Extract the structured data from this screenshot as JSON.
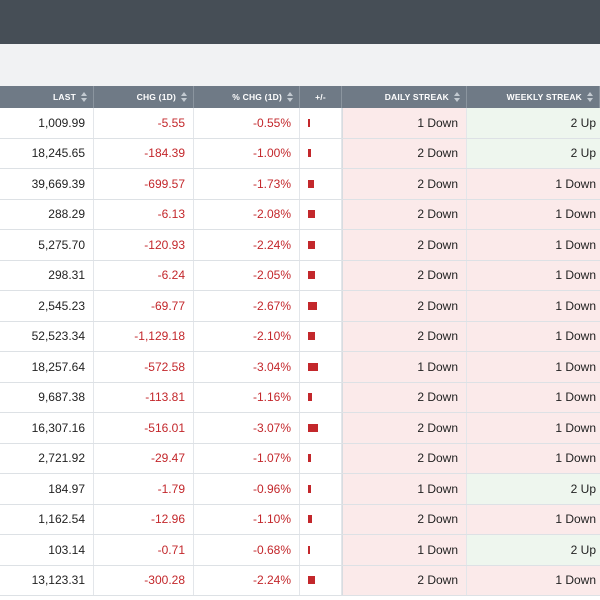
{
  "headers": {
    "last": "LAST",
    "chg": "CHG (1D)",
    "pct_chg": "% CHG (1D)",
    "plus_minus": "+/-",
    "daily_streak": "DAILY STREAK",
    "weekly_streak": "WEEKLY STREAK"
  },
  "colors": {
    "negative": "#c3272b",
    "header_bg": "#6f7a86",
    "topbar_bg": "#464e56",
    "streak_down_bg": "#fbeaea",
    "streak_up_bg": "#eef6ee"
  },
  "rows": [
    {
      "last": "1,009.99",
      "chg": "-5.55",
      "pct_chg": "-0.55%",
      "pct_value": -0.55,
      "daily_streak": "1 Down",
      "weekly_streak": "2 Up"
    },
    {
      "last": "18,245.65",
      "chg": "-184.39",
      "pct_chg": "-1.00%",
      "pct_value": -1.0,
      "daily_streak": "2 Down",
      "weekly_streak": "2 Up"
    },
    {
      "last": "39,669.39",
      "chg": "-699.57",
      "pct_chg": "-1.73%",
      "pct_value": -1.73,
      "daily_streak": "2 Down",
      "weekly_streak": "1 Down"
    },
    {
      "last": "288.29",
      "chg": "-6.13",
      "pct_chg": "-2.08%",
      "pct_value": -2.08,
      "daily_streak": "2 Down",
      "weekly_streak": "1 Down"
    },
    {
      "last": "5,275.70",
      "chg": "-120.93",
      "pct_chg": "-2.24%",
      "pct_value": -2.24,
      "daily_streak": "2 Down",
      "weekly_streak": "1 Down"
    },
    {
      "last": "298.31",
      "chg": "-6.24",
      "pct_chg": "-2.05%",
      "pct_value": -2.05,
      "daily_streak": "2 Down",
      "weekly_streak": "1 Down"
    },
    {
      "last": "2,545.23",
      "chg": "-69.77",
      "pct_chg": "-2.67%",
      "pct_value": -2.67,
      "daily_streak": "2 Down",
      "weekly_streak": "1 Down"
    },
    {
      "last": "52,523.34",
      "chg": "-1,129.18",
      "pct_chg": "-2.10%",
      "pct_value": -2.1,
      "daily_streak": "2 Down",
      "weekly_streak": "1 Down"
    },
    {
      "last": "18,257.64",
      "chg": "-572.58",
      "pct_chg": "-3.04%",
      "pct_value": -3.04,
      "daily_streak": "1 Down",
      "weekly_streak": "1 Down"
    },
    {
      "last": "9,687.38",
      "chg": "-113.81",
      "pct_chg": "-1.16%",
      "pct_value": -1.16,
      "daily_streak": "2 Down",
      "weekly_streak": "1 Down"
    },
    {
      "last": "16,307.16",
      "chg": "-516.01",
      "pct_chg": "-3.07%",
      "pct_value": -3.07,
      "daily_streak": "2 Down",
      "weekly_streak": "1 Down"
    },
    {
      "last": "2,721.92",
      "chg": "-29.47",
      "pct_chg": "-1.07%",
      "pct_value": -1.07,
      "daily_streak": "2 Down",
      "weekly_streak": "1 Down"
    },
    {
      "last": "184.97",
      "chg": "-1.79",
      "pct_chg": "-0.96%",
      "pct_value": -0.96,
      "daily_streak": "1 Down",
      "weekly_streak": "2 Up"
    },
    {
      "last": "1,162.54",
      "chg": "-12.96",
      "pct_chg": "-1.10%",
      "pct_value": -1.1,
      "daily_streak": "2 Down",
      "weekly_streak": "1 Down"
    },
    {
      "last": "103.14",
      "chg": "-0.71",
      "pct_chg": "-0.68%",
      "pct_value": -0.68,
      "daily_streak": "1 Down",
      "weekly_streak": "2 Up"
    },
    {
      "last": "13,123.31",
      "chg": "-300.28",
      "pct_chg": "-2.24%",
      "pct_value": -2.24,
      "daily_streak": "2 Down",
      "weekly_streak": "1 Down"
    }
  ]
}
